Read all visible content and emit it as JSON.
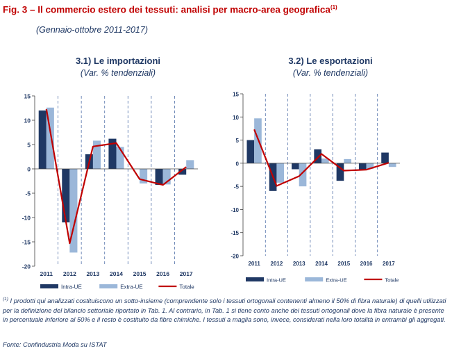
{
  "title": "Fig. 3 – Il commercio estero dei tessuti: analisi per macro-area geografica",
  "title_footnote": "(1)",
  "subtitle": "(Gennaio-ottobre 2011-2017)",
  "colors": {
    "intra": "#1f3864",
    "extra": "#9bb7d9",
    "totale": "#c00000",
    "axis": "#404040"
  },
  "chart_data": [
    {
      "type": "bar",
      "title": "3.1) Le importazioni",
      "subtitle": "(Var. % tendenziali)",
      "categories": [
        "2011",
        "2012",
        "2013",
        "2014",
        "2015",
        "2016",
        "2017"
      ],
      "ylim": [
        -20,
        15
      ],
      "yticks": [
        15,
        10,
        5,
        0,
        -5,
        -10,
        -15,
        -20
      ],
      "series": [
        {
          "name": "Intra-UE",
          "values": [
            12.0,
            -11.0,
            3.0,
            6.2,
            0.0,
            -3.3,
            -1.2
          ]
        },
        {
          "name": "Extra-UE",
          "values": [
            12.6,
            -17.2,
            5.8,
            4.5,
            -3.0,
            -3.2,
            1.8
          ]
        }
      ],
      "line": {
        "name": "Totale",
        "values": [
          12.3,
          -15.3,
          4.6,
          5.3,
          -2.1,
          -3.3,
          0.4
        ]
      }
    },
    {
      "type": "bar",
      "title": "3.2) Le esportazioni",
      "subtitle": "(Var. % tendenziali)",
      "categories": [
        "2011",
        "2012",
        "2013",
        "2014",
        "2015",
        "2016",
        "2017"
      ],
      "ylim": [
        -20,
        15
      ],
      "yticks": [
        15,
        10,
        5,
        0,
        -5,
        -10,
        -15,
        -20
      ],
      "series": [
        {
          "name": "Intra-UE",
          "values": [
            5.0,
            -6.0,
            -1.3,
            3.0,
            -3.8,
            -1.5,
            2.3
          ]
        },
        {
          "name": "Extra-UE",
          "values": [
            9.7,
            -4.2,
            -5.0,
            1.0,
            0.9,
            -1.2,
            -0.8
          ]
        }
      ],
      "line": {
        "name": "Totale",
        "values": [
          7.3,
          -4.9,
          -2.8,
          2.0,
          -1.6,
          -1.4,
          0.1
        ]
      }
    }
  ],
  "note_marker": "(1)",
  "note": " I prodotti qui analizzati costituiscono un sotto-insieme (comprendente solo i tessuti ortogonali contenenti almeno il 50% di fibra naturale) di quelli utilizzati per la definizione del bilancio settoriale riportato in Tab. 1. Al contrario, in Tab. 1 si tiene conto anche dei tessuti ortogonali dove la fibra naturale è presente in percentuale inferiore al 50% e il resto è costituito da fibre chimiche. I tessuti a maglia sono, invece, considerati nella loro totalità in entrambi gli aggregati.",
  "source": "Fonte: Confindustria Moda  su ISTAT"
}
